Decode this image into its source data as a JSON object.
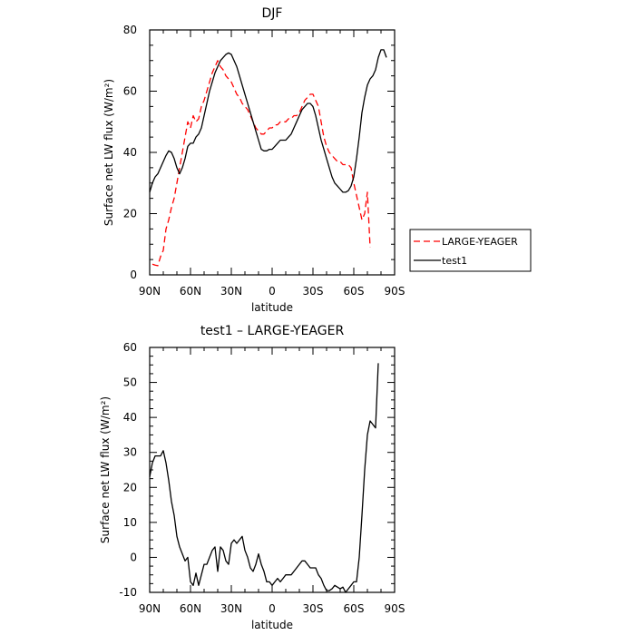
{
  "chart_data": [
    {
      "type": "line",
      "title": "DJF",
      "xlabel": "latitude",
      "ylabel": "Surface net LW flux (W/m²)",
      "xlim": [
        90,
        -90
      ],
      "ylim": [
        0,
        80
      ],
      "x_ticks": [
        {
          "value": 90,
          "label": "90N"
        },
        {
          "value": 60,
          "label": "60N"
        },
        {
          "value": 30,
          "label": "30N"
        },
        {
          "value": 0,
          "label": "0"
        },
        {
          "value": -30,
          "label": "30S"
        },
        {
          "value": -60,
          "label": "60S"
        },
        {
          "value": -90,
          "label": "90S"
        }
      ],
      "y_ticks": [
        0,
        20,
        40,
        60,
        80
      ],
      "legend": "right, outside plot",
      "series": [
        {
          "name": "LARGE-YEAGER",
          "color": "#ff0000",
          "style": "dashed",
          "points": [
            [
              88,
              3.5
            ],
            [
              86,
              3.2
            ],
            [
              84,
              3
            ],
            [
              82,
              6
            ],
            [
              80,
              8
            ],
            [
              78,
              15
            ],
            [
              76,
              18
            ],
            [
              74,
              22
            ],
            [
              72,
              25
            ],
            [
              70,
              30
            ],
            [
              68,
              35
            ],
            [
              66,
              40
            ],
            [
              64,
              45
            ],
            [
              62,
              50
            ],
            [
              60,
              48
            ],
            [
              58,
              52
            ],
            [
              56,
              50
            ],
            [
              54,
              51
            ],
            [
              52,
              55
            ],
            [
              50,
              57
            ],
            [
              48,
              60
            ],
            [
              46,
              63
            ],
            [
              44,
              66
            ],
            [
              42,
              68
            ],
            [
              40,
              70
            ],
            [
              38,
              68
            ],
            [
              36,
              67
            ],
            [
              34,
              65
            ],
            [
              32,
              64
            ],
            [
              30,
              63
            ],
            [
              28,
              61
            ],
            [
              26,
              59
            ],
            [
              24,
              58
            ],
            [
              22,
              56
            ],
            [
              20,
              55
            ],
            [
              18,
              54
            ],
            [
              16,
              52
            ],
            [
              14,
              50
            ],
            [
              12,
              48
            ],
            [
              10,
              47
            ],
            [
              8,
              46
            ],
            [
              6,
              46
            ],
            [
              4,
              47
            ],
            [
              2,
              48
            ],
            [
              0,
              48
            ],
            [
              -2,
              49
            ],
            [
              -4,
              49
            ],
            [
              -6,
              50
            ],
            [
              -8,
              50
            ],
            [
              -10,
              50
            ],
            [
              -12,
              51
            ],
            [
              -14,
              51
            ],
            [
              -16,
              52
            ],
            [
              -18,
              52
            ],
            [
              -20,
              53
            ],
            [
              -22,
              55
            ],
            [
              -24,
              57
            ],
            [
              -26,
              58
            ],
            [
              -28,
              59
            ],
            [
              -30,
              59
            ],
            [
              -32,
              57
            ],
            [
              -34,
              55
            ],
            [
              -36,
              50
            ],
            [
              -38,
              45
            ],
            [
              -40,
              42
            ],
            [
              -42,
              40
            ],
            [
              -44,
              39
            ],
            [
              -46,
              38
            ],
            [
              -48,
              37
            ],
            [
              -50,
              37
            ],
            [
              -52,
              36
            ],
            [
              -54,
              36
            ],
            [
              -56,
              36
            ],
            [
              -58,
              35
            ],
            [
              -60,
              30
            ],
            [
              -62,
              26
            ],
            [
              -64,
              22
            ],
            [
              -66,
              18
            ],
            [
              -68,
              20
            ],
            [
              -70,
              27
            ],
            [
              -72,
              9
            ]
          ]
        },
        {
          "name": "test1",
          "color": "#000000",
          "style": "solid",
          "points": [
            [
              90,
              27
            ],
            [
              88,
              30
            ],
            [
              86,
              32
            ],
            [
              84,
              33
            ],
            [
              82,
              35
            ],
            [
              80,
              37
            ],
            [
              78,
              39
            ],
            [
              76,
              40.5
            ],
            [
              74,
              40
            ],
            [
              72,
              38
            ],
            [
              70,
              35
            ],
            [
              68,
              33
            ],
            [
              66,
              35
            ],
            [
              64,
              38
            ],
            [
              62,
              42
            ],
            [
              60,
              43
            ],
            [
              58,
              43
            ],
            [
              56,
              45
            ],
            [
              54,
              46
            ],
            [
              52,
              48
            ],
            [
              50,
              52
            ],
            [
              48,
              56
            ],
            [
              46,
              60
            ],
            [
              44,
              63
            ],
            [
              42,
              66
            ],
            [
              40,
              68
            ],
            [
              38,
              70
            ],
            [
              36,
              71
            ],
            [
              34,
              72
            ],
            [
              32,
              72.5
            ],
            [
              30,
              72
            ],
            [
              28,
              70
            ],
            [
              26,
              68
            ],
            [
              24,
              65
            ],
            [
              22,
              62
            ],
            [
              20,
              59
            ],
            [
              18,
              56
            ],
            [
              16,
              53
            ],
            [
              14,
              50
            ],
            [
              12,
              47
            ],
            [
              10,
              44
            ],
            [
              8,
              41
            ],
            [
              6,
              40.5
            ],
            [
              4,
              40.5
            ],
            [
              2,
              41
            ],
            [
              0,
              41
            ],
            [
              -2,
              42
            ],
            [
              -4,
              43
            ],
            [
              -6,
              44
            ],
            [
              -8,
              44
            ],
            [
              -10,
              44
            ],
            [
              -12,
              45
            ],
            [
              -14,
              46
            ],
            [
              -16,
              48
            ],
            [
              -18,
              50
            ],
            [
              -20,
              52
            ],
            [
              -22,
              54
            ],
            [
              -24,
              55
            ],
            [
              -26,
              56
            ],
            [
              -28,
              56
            ],
            [
              -30,
              55
            ],
            [
              -32,
              52
            ],
            [
              -34,
              48
            ],
            [
              -36,
              44
            ],
            [
              -38,
              41
            ],
            [
              -40,
              38
            ],
            [
              -42,
              35
            ],
            [
              -44,
              32
            ],
            [
              -46,
              30
            ],
            [
              -48,
              29
            ],
            [
              -50,
              28
            ],
            [
              -52,
              27
            ],
            [
              -54,
              27
            ],
            [
              -56,
              27.5
            ],
            [
              -58,
              29
            ],
            [
              -60,
              32
            ],
            [
              -62,
              38
            ],
            [
              -64,
              45
            ],
            [
              -66,
              53
            ],
            [
              -68,
              58
            ],
            [
              -70,
              62
            ],
            [
              -72,
              64
            ],
            [
              -74,
              65
            ],
            [
              -76,
              67
            ],
            [
              -78,
              71
            ],
            [
              -80,
              73.5
            ],
            [
              -82,
              73.5
            ],
            [
              -84,
              71
            ]
          ]
        }
      ]
    },
    {
      "type": "line",
      "title": "test1 – LARGE-YEAGER",
      "xlabel": "latitude",
      "ylabel": "Surface net LW flux (W/m²)",
      "xlim": [
        90,
        -90
      ],
      "ylim": [
        -10,
        60
      ],
      "x_ticks": [
        {
          "value": 90,
          "label": "90N"
        },
        {
          "value": 60,
          "label": "60N"
        },
        {
          "value": 30,
          "label": "30N"
        },
        {
          "value": 0,
          "label": "0"
        },
        {
          "value": -30,
          "label": "30S"
        },
        {
          "value": -60,
          "label": "60S"
        },
        {
          "value": -90,
          "label": "90S"
        }
      ],
      "y_ticks": [
        -10,
        0,
        10,
        20,
        30,
        40,
        50,
        60
      ],
      "series": [
        {
          "color": "#000000",
          "style": "solid",
          "points": [
            [
              90,
              23
            ],
            [
              88,
              27
            ],
            [
              86,
              29
            ],
            [
              84,
              29
            ],
            [
              82,
              29
            ],
            [
              80,
              30.5
            ],
            [
              78,
              27
            ],
            [
              76,
              22
            ],
            [
              74,
              16
            ],
            [
              72,
              12
            ],
            [
              70,
              6
            ],
            [
              68,
              3
            ],
            [
              66,
              1
            ],
            [
              64,
              -1
            ],
            [
              62,
              0
            ],
            [
              60,
              -7
            ],
            [
              58,
              -8
            ],
            [
              56,
              -4.5
            ],
            [
              54,
              -8
            ],
            [
              52,
              -5
            ],
            [
              50,
              -2
            ],
            [
              48,
              -2
            ],
            [
              46,
              0
            ],
            [
              44,
              2
            ],
            [
              42,
              3
            ],
            [
              40,
              -4
            ],
            [
              38,
              3
            ],
            [
              36,
              2
            ],
            [
              34,
              -1
            ],
            [
              32,
              -2
            ],
            [
              30,
              4
            ],
            [
              28,
              5
            ],
            [
              26,
              4
            ],
            [
              24,
              5
            ],
            [
              22,
              6
            ],
            [
              20,
              2
            ],
            [
              18,
              0
            ],
            [
              16,
              -3
            ],
            [
              14,
              -4
            ],
            [
              12,
              -2
            ],
            [
              10,
              1
            ],
            [
              8,
              -2
            ],
            [
              6,
              -4
            ],
            [
              4,
              -7
            ],
            [
              2,
              -7
            ],
            [
              0,
              -8
            ],
            [
              -2,
              -7
            ],
            [
              -4,
              -6
            ],
            [
              -6,
              -7
            ],
            [
              -8,
              -6
            ],
            [
              -10,
              -5
            ],
            [
              -12,
              -5
            ],
            [
              -14,
              -5
            ],
            [
              -16,
              -4
            ],
            [
              -18,
              -3
            ],
            [
              -20,
              -2
            ],
            [
              -22,
              -1
            ],
            [
              -24,
              -1
            ],
            [
              -26,
              -2
            ],
            [
              -28,
              -3
            ],
            [
              -30,
              -3
            ],
            [
              -32,
              -3
            ],
            [
              -34,
              -5
            ],
            [
              -36,
              -6
            ],
            [
              -38,
              -8
            ],
            [
              -40,
              -9.5
            ],
            [
              -42,
              -9.5
            ],
            [
              -44,
              -9
            ],
            [
              -46,
              -8
            ],
            [
              -48,
              -8.5
            ],
            [
              -50,
              -9
            ],
            [
              -52,
              -8.5
            ],
            [
              -54,
              -10
            ],
            [
              -56,
              -9
            ],
            [
              -58,
              -8
            ],
            [
              -60,
              -7
            ],
            [
              -62,
              -7
            ],
            [
              -64,
              0
            ],
            [
              -66,
              12
            ],
            [
              -68,
              25
            ],
            [
              -70,
              35
            ],
            [
              -72,
              39
            ],
            [
              -74,
              38
            ],
            [
              -76,
              37
            ],
            [
              -78,
              55.5
            ]
          ]
        }
      ]
    }
  ]
}
